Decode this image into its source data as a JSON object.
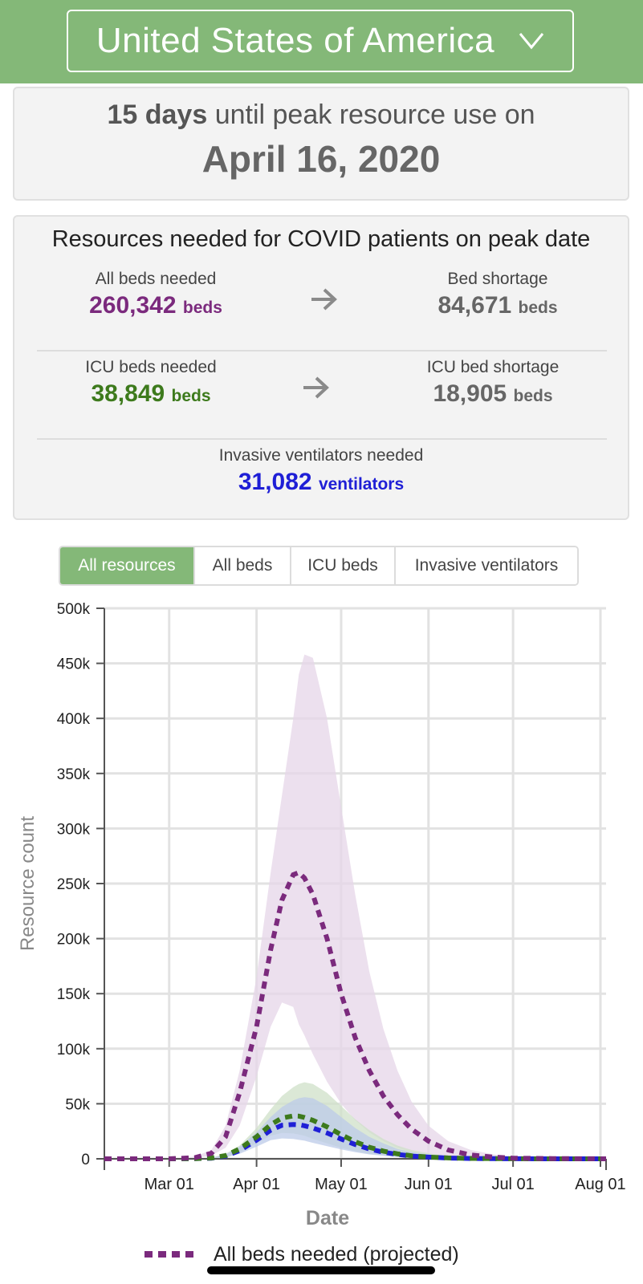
{
  "header": {
    "country": "United States of America",
    "chevron_icon": "chevron-down-icon",
    "background": "#84b878"
  },
  "peak": {
    "days": "15 days",
    "text": "until peak resource use on",
    "date": "April 16, 2020"
  },
  "resources": {
    "title": "Resources needed for COVID patients on peak date",
    "all_beds": {
      "label": "All beds needed",
      "value": "260,342",
      "unit": "beds",
      "color": "#7b2a7d"
    },
    "bed_shortage": {
      "label": "Bed shortage",
      "value": "84,671",
      "unit": "beds"
    },
    "icu_beds": {
      "label": "ICU beds needed",
      "value": "38,849",
      "unit": "beds",
      "color": "#3d7a1c"
    },
    "icu_shortage": {
      "label": "ICU bed shortage",
      "value": "18,905",
      "unit": "beds"
    },
    "ventilators": {
      "label": "Invasive ventilators needed",
      "value": "31,082",
      "unit": "ventilators",
      "color": "#1f1fd6"
    },
    "arrow_icon": "arrow-right-icon"
  },
  "tabs": [
    {
      "label": "All resources",
      "active": true
    },
    {
      "label": "All beds",
      "active": false
    },
    {
      "label": "ICU beds",
      "active": false
    },
    {
      "label": "Invasive ventilators",
      "active": false
    }
  ],
  "legend": {
    "label": "All beds needed (projected)"
  },
  "chart_data": {
    "type": "line",
    "xlabel": "Date",
    "ylabel": "Resource count",
    "ylim": [
      0,
      500000
    ],
    "x_ticks": [
      "Mar 01",
      "Apr 01",
      "May 01",
      "Jun 01",
      "Jul 01",
      "Aug 01"
    ],
    "y_ticks": [
      "0",
      "50k",
      "100k",
      "150k",
      "200k",
      "250k",
      "300k",
      "350k",
      "400k",
      "450k",
      "500k"
    ],
    "grid": true,
    "x": [
      "2020-02-07",
      "2020-03-01",
      "2020-03-10",
      "2020-03-16",
      "2020-03-21",
      "2020-03-26",
      "2020-04-01",
      "2020-04-06",
      "2020-04-10",
      "2020-04-14",
      "2020-04-16",
      "2020-04-18",
      "2020-04-21",
      "2020-04-26",
      "2020-05-01",
      "2020-05-06",
      "2020-05-11",
      "2020-05-16",
      "2020-05-21",
      "2020-05-26",
      "2020-06-01",
      "2020-06-08",
      "2020-06-16",
      "2020-06-24",
      "2020-07-01",
      "2020-07-15",
      "2020-08-03"
    ],
    "series": [
      {
        "name": "All beds needed (projected)",
        "color": "#7b2a7d",
        "band_color": "#e6d5e8",
        "values": [
          0,
          0,
          1000,
          5000,
          20000,
          60000,
          120000,
          190000,
          235000,
          258000,
          260000,
          255000,
          240000,
          200000,
          150000,
          110000,
          80000,
          57000,
          40000,
          27000,
          16000,
          8000,
          3500,
          1500,
          600,
          200,
          0
        ],
        "lower": [
          0,
          0,
          500,
          3000,
          10000,
          30000,
          75000,
          120000,
          142000,
          138000,
          122000,
          112000,
          95000,
          70000,
          50000,
          35000,
          24000,
          16000,
          10000,
          6000,
          3000,
          1200,
          400,
          100,
          0,
          0,
          0
        ],
        "upper": [
          0,
          0,
          2000,
          8000,
          30000,
          80000,
          165000,
          260000,
          330000,
          400000,
          440000,
          458000,
          455000,
          400000,
          320000,
          240000,
          170000,
          118000,
          80000,
          52000,
          30000,
          16000,
          8000,
          4000,
          2000,
          800,
          200
        ]
      },
      {
        "name": "ICU beds needed",
        "color": "#3d7a1c",
        "band_color": "#cfe0c8",
        "values": [
          0,
          0,
          200,
          700,
          3000,
          9000,
          20000,
          31000,
          37000,
          39000,
          38800,
          37500,
          35000,
          29000,
          22000,
          15500,
          10500,
          7000,
          4500,
          2800,
          1600,
          800,
          400,
          200,
          100,
          0,
          0
        ],
        "lower": [
          0,
          0,
          100,
          400,
          1500,
          6000,
          14000,
          21000,
          23500,
          23000,
          22000,
          21000,
          18000,
          14000,
          10000,
          7000,
          4500,
          3000,
          1800,
          1000,
          500,
          200,
          100,
          0,
          0,
          0,
          0
        ],
        "upper": [
          0,
          0,
          300,
          1000,
          4500,
          12000,
          28000,
          45000,
          57000,
          65000,
          68000,
          69500,
          68000,
          60000,
          48000,
          36000,
          26000,
          18000,
          12000,
          8000,
          5000,
          2500,
          1200,
          600,
          300,
          100,
          0
        ]
      },
      {
        "name": "Invasive ventilators needed",
        "color": "#1f1fd6",
        "band_color": "#bccbe8",
        "values": [
          0,
          0,
          150,
          600,
          2500,
          7500,
          17000,
          26000,
          30500,
          31200,
          31000,
          30000,
          28000,
          23500,
          18000,
          13000,
          9000,
          6000,
          4000,
          2500,
          1500,
          700,
          300,
          150,
          50,
          0,
          0
        ],
        "lower": [
          0,
          0,
          80,
          300,
          1200,
          4500,
          11000,
          17000,
          18500,
          18000,
          17200,
          16500,
          14500,
          11500,
          8500,
          6000,
          4000,
          2700,
          1700,
          1000,
          500,
          200,
          100,
          0,
          0,
          0,
          0
        ],
        "upper": [
          0,
          0,
          250,
          900,
          4000,
          11000,
          24000,
          38000,
          47000,
          53000,
          55000,
          56000,
          55000,
          48000,
          38000,
          28000,
          20000,
          14000,
          9000,
          6000,
          4000,
          2000,
          900,
          400,
          200,
          50,
          0
        ]
      }
    ]
  }
}
